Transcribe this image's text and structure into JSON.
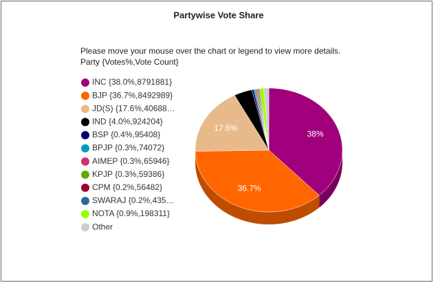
{
  "chart_data": {
    "type": "pie",
    "title": "Partywise Vote Share",
    "subtitle": "Please move your mouse over the chart or legend to view more details.",
    "legend_title": "Party {Votes%,Vote Count}",
    "categories": [
      "INC {38.0%,8791881}",
      "BJP {36.7%,8492989}",
      "JD(S) {17.6%,40688…",
      "IND {4.0%,924204}",
      "BSP {0.4%,95408}",
      "BPJP {0.3%,74072}",
      "AIMEP {0.3%,65946}",
      "KPJP {0.3%,59386}",
      "CPM {0.2%,56482}",
      "SWARAJ {0.2%,435…",
      "NOTA {0.9%,198311}",
      "Other"
    ],
    "values": [
      38.0,
      36.7,
      17.6,
      4.0,
      0.4,
      0.3,
      0.3,
      0.3,
      0.2,
      0.2,
      0.9,
      1.1
    ],
    "value_labels": [
      "38%",
      "36.7%",
      "17.6%",
      null,
      null,
      null,
      null,
      null,
      null,
      null,
      null,
      null
    ],
    "colors": [
      "#a0007b",
      "#ff6600",
      "#e8b98a",
      "#000000",
      "#00006b",
      "#0099c6",
      "#cc3366",
      "#66aa00",
      "#990033",
      "#336699",
      "#99ff00",
      "#cccccc"
    ],
    "legend": "left"
  }
}
